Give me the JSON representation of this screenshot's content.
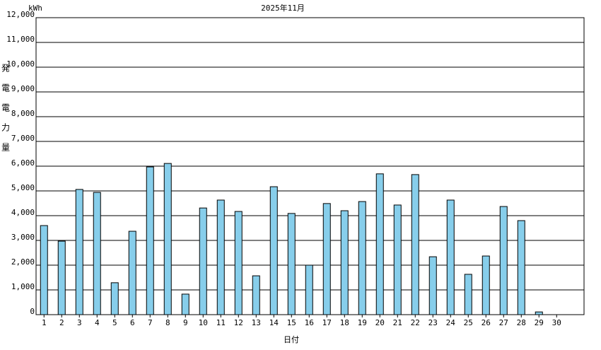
{
  "chart_data": {
    "type": "bar",
    "title": "2025年11月",
    "y_unit": "kWh",
    "y_label": "発電電力量",
    "x_label": "日付",
    "categories": [
      "1",
      "2",
      "3",
      "4",
      "5",
      "6",
      "7",
      "8",
      "9",
      "10",
      "11",
      "12",
      "13",
      "14",
      "15",
      "16",
      "17",
      "18",
      "19",
      "20",
      "21",
      "22",
      "23",
      "24",
      "25",
      "26",
      "27",
      "28",
      "29",
      "30"
    ],
    "values": [
      3600,
      2970,
      5060,
      4940,
      1290,
      3370,
      5970,
      6110,
      830,
      4310,
      4630,
      4170,
      1570,
      5170,
      4090,
      2000,
      4490,
      4200,
      4570,
      5690,
      4430,
      5660,
      2340,
      4630,
      1630,
      2370,
      4370,
      3800,
      110,
      0
    ],
    "color": "#87ceeb",
    "ylim": [
      0,
      12000
    ],
    "yticks": [
      0,
      {
        "value": 1000,
        "label": "1,000"
      },
      {
        "value": 2000,
        "label": "2,000"
      },
      {
        "value": 3000,
        "label": "3,000"
      },
      {
        "value": 4000,
        "label": "4,000"
      },
      {
        "value": 5000,
        "label": "5,000"
      },
      {
        "value": 6000,
        "label": "6,000"
      },
      {
        "value": 7000,
        "label": "7,000"
      },
      {
        "value": 8000,
        "label": "8,000"
      },
      {
        "value": 9000,
        "label": "9,000"
      },
      {
        "value": 10000,
        "label": "10,000"
      },
      {
        "value": 11000,
        "label": "11,000"
      },
      {
        "value": 12000,
        "label": "12,000"
      }
    ],
    "grid": true
  }
}
